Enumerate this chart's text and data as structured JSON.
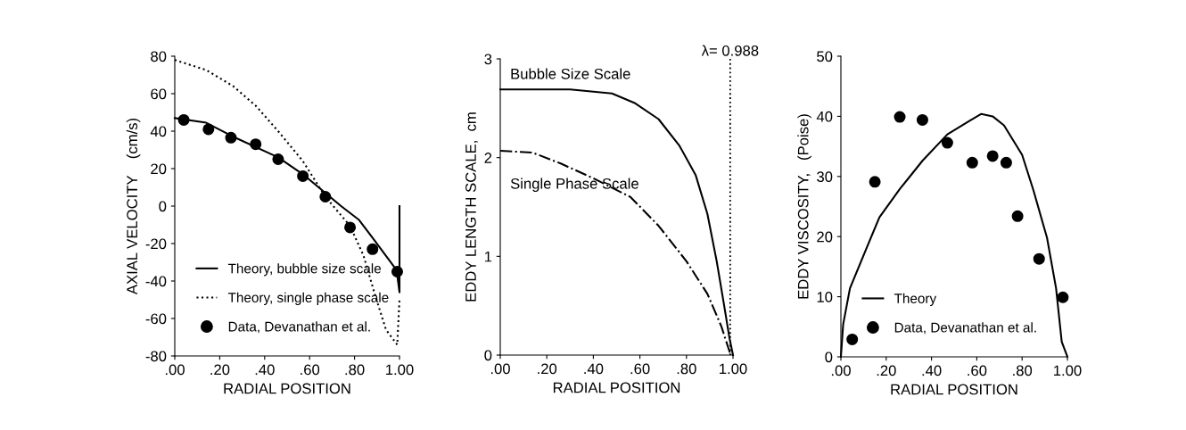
{
  "chart_data": [
    {
      "type": "line",
      "xlabel": "RADIAL POSITION",
      "ylabel": "AXIAL VELOCITY    (cm/s)",
      "xlim": [
        0,
        1.0
      ],
      "xticks": [
        {
          "value": 0,
          "label": ".00"
        },
        {
          "value": 0.2,
          "label": ".20"
        },
        {
          "value": 0.4,
          "label": ".40"
        },
        {
          "value": 0.6,
          "label": ".60"
        },
        {
          "value": 0.8,
          "label": ".80"
        },
        {
          "value": 1.0,
          "label": "1.00"
        }
      ],
      "ylim": [
        -80,
        80
      ],
      "yticks": [
        -80,
        -60,
        -40,
        -20,
        0,
        20,
        40,
        60,
        80
      ],
      "grid": false,
      "legend": "bottom left",
      "series": [
        {
          "name": "Theory, bubble size scale",
          "line_style": "solid",
          "marker": "none",
          "color": "#000000",
          "x": [
            0,
            0.14,
            0.26,
            0.46,
            0.57,
            0.67,
            0.74,
            0.82,
            0.89,
            0.98,
            0.99,
            1.0,
            1.0
          ],
          "values": [
            47,
            44.5,
            37,
            26,
            17,
            7,
            0,
            -7.4,
            -18.5,
            -33,
            -37,
            -46,
            0
          ]
        },
        {
          "name": "Theory, single phase scale",
          "line_style": "dotted",
          "marker": "none",
          "color": "#000000",
          "x": [
            0,
            0.14,
            0.26,
            0.36,
            0.46,
            0.57,
            0.67,
            0.78,
            0.84,
            0.89,
            0.94,
            0.99,
            1.0
          ],
          "values": [
            78,
            72.6,
            64,
            53.6,
            40,
            24,
            5,
            -10.6,
            -26.5,
            -47,
            -66,
            -74,
            -50
          ]
        },
        {
          "name": "Data, Devanathan et al.",
          "type": "scatter",
          "marker": "circle",
          "color": "#000000",
          "x": [
            0.04,
            0.15,
            0.25,
            0.36,
            0.46,
            0.57,
            0.67,
            0.78,
            0.88,
            0.99
          ],
          "values": [
            46,
            41,
            36.5,
            33,
            25,
            16,
            5,
            -11.4,
            -23,
            -35
          ]
        }
      ]
    },
    {
      "type": "line",
      "xlabel": "RADIAL POSITION",
      "ylabel": "EDDY LENGTH SCALE,  cm",
      "xlim": [
        0,
        1.0
      ],
      "xticks": [
        {
          "value": 0,
          "label": ".00"
        },
        {
          "value": 0.2,
          "label": ".20"
        },
        {
          "value": 0.4,
          "label": ".40"
        },
        {
          "value": 0.6,
          "label": ".60"
        },
        {
          "value": 0.8,
          "label": ".80"
        },
        {
          "value": 1.0,
          "label": "1.00"
        }
      ],
      "ylim": [
        0,
        3
      ],
      "yticks": [
        0,
        1,
        2,
        3
      ],
      "grid": false,
      "legend": false,
      "ref_lines": [
        {
          "axis": "x",
          "value": 0.988,
          "label": "λ= 0.988",
          "color": "#000000",
          "line_style": "dotted"
        }
      ],
      "series": [
        {
          "name": "Bubble Size Scale",
          "line_style": "solid",
          "marker": "none",
          "color": "#000000",
          "x": [
            0,
            0.3,
            0.48,
            0.58,
            0.68,
            0.77,
            0.84,
            0.89,
            0.93,
            0.96,
            0.985,
            1.0
          ],
          "values": [
            2.69,
            2.69,
            2.65,
            2.55,
            2.39,
            2.12,
            1.82,
            1.43,
            0.95,
            0.53,
            0.17,
            0
          ]
        },
        {
          "name": "Single Phase Scale",
          "line_style": "dashdot",
          "marker": "none",
          "color": "#000000",
          "x": [
            0,
            0.14,
            0.26,
            0.4,
            0.56,
            0.68,
            0.8,
            0.89,
            0.95,
            0.99
          ],
          "values": [
            2.07,
            2.05,
            1.94,
            1.79,
            1.6,
            1.31,
            0.95,
            0.62,
            0.29,
            0
          ]
        }
      ]
    },
    {
      "type": "line",
      "xlabel": "RADIAL POSITION",
      "ylabel": "EDDY VISCOSITY,   (Poise)",
      "xlim": [
        0,
        1.0
      ],
      "xticks": [
        {
          "value": 0,
          "label": ".00"
        },
        {
          "value": 0.2,
          "label": ".20"
        },
        {
          "value": 0.4,
          "label": ".40"
        },
        {
          "value": 0.6,
          "label": ".60"
        },
        {
          "value": 0.8,
          "label": ".80"
        },
        {
          "value": 1.0,
          "label": "1.00"
        }
      ],
      "ylim": [
        0,
        50
      ],
      "yticks": [
        0,
        10,
        20,
        30,
        40,
        50
      ],
      "grid": false,
      "legend": "bottom left",
      "series": [
        {
          "name": "Theory",
          "line_style": "solid",
          "marker": "none",
          "color": "#000000",
          "x": [
            0,
            0.01,
            0.04,
            0.11,
            0.17,
            0.26,
            0.36,
            0.47,
            0.57,
            0.62,
            0.67,
            0.72,
            0.8,
            0.85,
            0.91,
            0.95,
            0.975,
            1.0
          ],
          "values": [
            0,
            5.4,
            11.4,
            17.8,
            23.2,
            27.9,
            32.6,
            37,
            39.3,
            40.4,
            40,
            38.5,
            33.6,
            27.7,
            19.8,
            11.4,
            2.5,
            0
          ]
        },
        {
          "name": "Data, Devanathan et al.",
          "type": "scatter",
          "marker": "circle",
          "color": "#000000",
          "x": [
            0.05,
            0.15,
            0.26,
            0.36,
            0.47,
            0.58,
            0.67,
            0.73,
            0.78,
            0.875,
            0.98
          ],
          "values": [
            2.9,
            29.1,
            39.9,
            39.4,
            35.6,
            32.3,
            33.4,
            32.3,
            23.4,
            16.3,
            9.9
          ]
        }
      ]
    }
  ]
}
